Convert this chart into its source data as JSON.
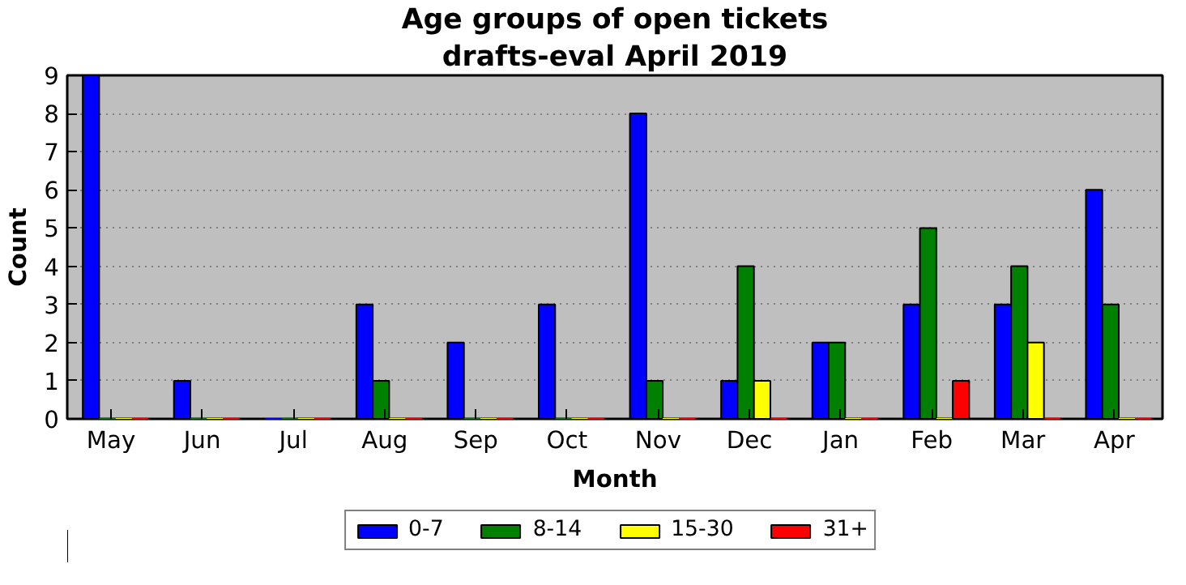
{
  "chart_data": {
    "type": "bar",
    "title": "Age groups of open tickets",
    "subtitle": "drafts-eval April 2019",
    "xlabel": "Month",
    "ylabel": "Count",
    "categories": [
      "May",
      "Jun",
      "Jul",
      "Aug",
      "Sep",
      "Oct",
      "Nov",
      "Dec",
      "Jan",
      "Feb",
      "Mar",
      "Apr"
    ],
    "series": [
      {
        "name": "0-7",
        "color": "#0000ff",
        "values": [
          9,
          1,
          0,
          3,
          2,
          3,
          8,
          1,
          2,
          3,
          3,
          6
        ]
      },
      {
        "name": "8-14",
        "color": "#008000",
        "values": [
          0,
          0,
          0,
          1,
          0,
          0,
          1,
          4,
          2,
          5,
          4,
          3
        ]
      },
      {
        "name": "15-30",
        "color": "#ffff00",
        "values": [
          0,
          0,
          0,
          0,
          0,
          0,
          0,
          1,
          0,
          0,
          2,
          0
        ]
      },
      {
        "name": "31+",
        "color": "#ff0000",
        "values": [
          0,
          0,
          0,
          0,
          0,
          0,
          0,
          0,
          0,
          1,
          0,
          0
        ]
      }
    ],
    "ylim": [
      0,
      9
    ],
    "yticks": [
      0,
      1,
      2,
      3,
      4,
      5,
      6,
      7,
      8,
      9
    ],
    "grid": "y",
    "legend": "bottom"
  }
}
